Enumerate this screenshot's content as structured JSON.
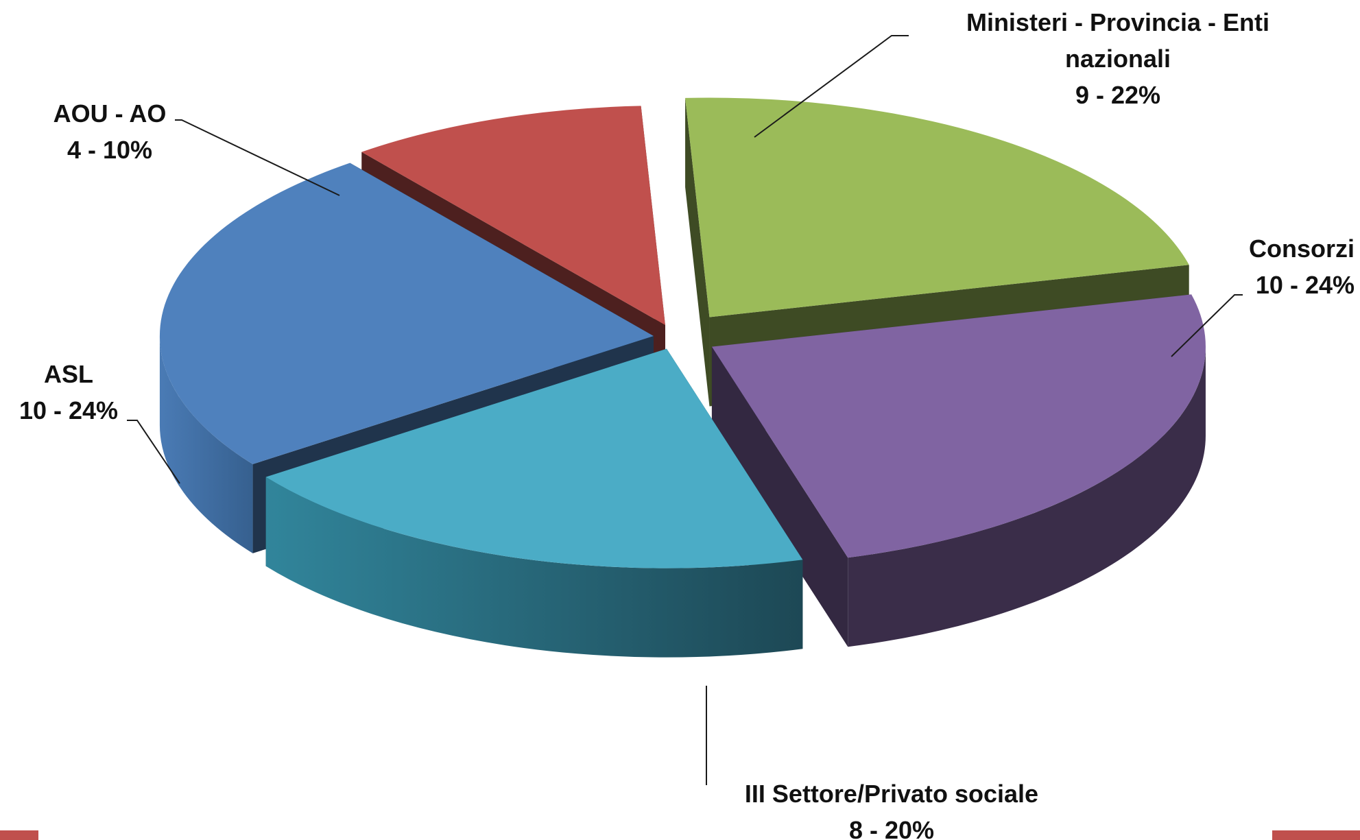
{
  "chart_data": {
    "type": "pie",
    "style": "3d-exploded",
    "title": "",
    "slices": [
      {
        "name": "Ministeri - Provincia - Enti nazionali",
        "label_lines": [
          "Ministeri - Provincia - Enti",
          "nazionali"
        ],
        "value": 9,
        "percent": "22%",
        "value_label": "9 - 22%",
        "color": "#9bbb59"
      },
      {
        "name": "Consorzi",
        "label_lines": [
          "Consorzi"
        ],
        "value": 10,
        "percent": "24%",
        "value_label": "10 - 24%",
        "color": "#8064a2"
      },
      {
        "name": "III Settore/Privato sociale",
        "label_lines": [
          "III Settore/Privato sociale"
        ],
        "value": 8,
        "percent": "20%",
        "value_label": "8 - 20%",
        "color": "#4bacc6"
      },
      {
        "name": "ASL",
        "label_lines": [
          "ASL"
        ],
        "value": 10,
        "percent": "24%",
        "value_label": "10 - 24%",
        "color": "#4f81bd"
      },
      {
        "name": "AOU - AO",
        "label_lines": [
          "AOU - AO"
        ],
        "value": 4,
        "percent": "10%",
        "value_label": "4 - 10%",
        "color": "#c0504d"
      }
    ]
  },
  "decor": {
    "accent_color": "#c0504d"
  }
}
